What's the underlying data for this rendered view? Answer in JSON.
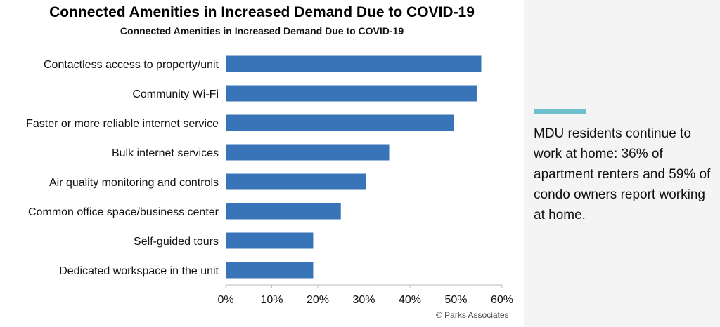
{
  "chart_data": {
    "type": "bar",
    "orientation": "horizontal",
    "title": "Connected Amenities in Increased Demand Due to COVID-19",
    "subtitle": "Connected Amenities in Increased Demand Due to COVID-19",
    "categories": [
      "Contactless access to property/unit",
      "Community Wi-Fi",
      "Faster or more reliable internet service",
      "Bulk internet services",
      "Air quality monitoring and controls",
      "Common office space/business center",
      "Self-guided tours",
      "Dedicated workspace in the unit"
    ],
    "values": [
      55.5,
      54.5,
      49.5,
      35.5,
      30.5,
      25,
      19,
      19
    ],
    "xlim": [
      0,
      60
    ],
    "xticks": [
      "0%",
      "10%",
      "20%",
      "30%",
      "40%",
      "50%",
      "60%"
    ],
    "xlabel": "",
    "ylabel": "",
    "grid": false,
    "bar_color": "#3a74b8"
  },
  "source": "© Parks Associates",
  "side_panel": {
    "accent_color": "#6dbfcc",
    "text": "MDU residents continue to work at home: 36% of apartment renters and 59% of condo owners report working at home."
  }
}
